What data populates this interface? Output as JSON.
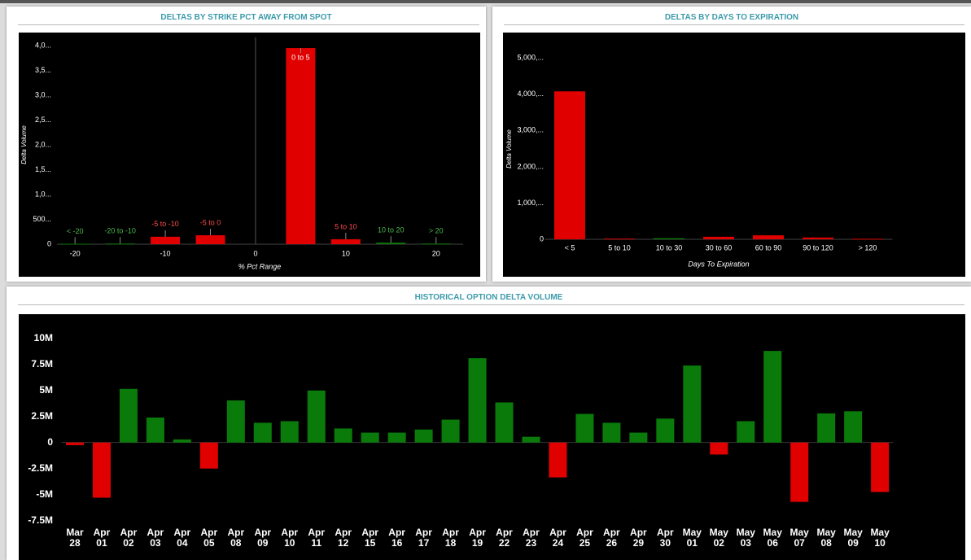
{
  "chart_data": [
    {
      "type": "bar",
      "title": "DELTAS BY STRIKE PCT AWAY FROM SPOT",
      "x_label": "% Pct Range",
      "y_label": "Delta Volume",
      "categories": [
        "< -20",
        "-20 to -10",
        "-5 to -10",
        "-5 to 0",
        "0 to 5",
        "5 to 10",
        "10 to 20",
        "> 20"
      ],
      "x": [
        -20,
        -15,
        -10,
        -5,
        5,
        10,
        15,
        20
      ],
      "values": [
        8,
        12,
        150,
        180,
        3950,
        100,
        30,
        12
      ],
      "colors": [
        "#0a7a0a",
        "#0a7a0a",
        "#e00000",
        "#e00000",
        "#e00000",
        "#e00000",
        "#0a7a0a",
        "#0a7a0a"
      ],
      "xlim": [
        -22,
        23
      ],
      "xticks": [
        -20,
        -10,
        0,
        10,
        20
      ],
      "ylim": [
        0,
        4000
      ],
      "yticks": [
        0,
        {
          "value": 500,
          "label": "500..."
        },
        {
          "value": 1000,
          "label": "1,0..."
        },
        {
          "value": 1500,
          "label": "1,5..."
        },
        {
          "value": 2000,
          "label": "2,0..."
        },
        {
          "value": 2500,
          "label": "2,5..."
        },
        {
          "value": 3000,
          "label": "3,0..."
        },
        {
          "value": 3500,
          "label": "3,5..."
        },
        {
          "value": 4000,
          "label": "4,0..."
        }
      ]
    },
    {
      "type": "bar",
      "title": "DELTAS BY DAYS TO EXPIRATION",
      "x_label": "Days To Expiration",
      "y_label": "Delta Volume",
      "categories": [
        "< 5",
        "5 to 10",
        "10 to 30",
        "30 to 60",
        "60 to 90",
        "90 to 120",
        "> 120"
      ],
      "values": [
        4080,
        20,
        30,
        70,
        110,
        50,
        15
      ],
      "colors": [
        "#e00000",
        "#e00000",
        "#0a7a0a",
        "#e00000",
        "#e00000",
        "#e00000",
        "#e00000"
      ],
      "ylim": [
        0,
        5500
      ],
      "yticks": [
        0,
        {
          "value": 1000,
          "label": "1,000,..."
        },
        {
          "value": 2000,
          "label": "2,000,..."
        },
        {
          "value": 3000,
          "label": "3,000,..."
        },
        {
          "value": 4000,
          "label": "4,000,..."
        },
        {
          "value": 5000,
          "label": "5,000,..."
        }
      ]
    },
    {
      "type": "bar",
      "title": "HISTORICAL OPTION DELTA VOLUME",
      "categories": [
        "Mar 28",
        "Apr 01",
        "Apr 02",
        "Apr 03",
        "Apr 04",
        "Apr 05",
        "Apr 08",
        "Apr 09",
        "Apr 10",
        "Apr 11",
        "Apr 12",
        "Apr 15",
        "Apr 16",
        "Apr 17",
        "Apr 18",
        "Apr 19",
        "Apr 22",
        "Apr 23",
        "Apr 24",
        "Apr 25",
        "Apr 26",
        "Apr 29",
        "Apr 30",
        "May 01",
        "May 02",
        "May 03",
        "May 06",
        "May 07",
        "May 08",
        "May 09",
        "May 10"
      ],
      "values": [
        -250000,
        -5300000,
        5150000,
        2400000,
        300000,
        -2500000,
        4050000,
        1900000,
        2050000,
        5000000,
        1350000,
        950000,
        950000,
        1250000,
        2200000,
        8100000,
        3850000,
        550000,
        -3350000,
        2750000,
        1900000,
        950000,
        2300000,
        7400000,
        -1150000,
        2050000,
        8800000,
        -5700000,
        2800000,
        3000000,
        -4750000
      ],
      "positive_color": "#0a7a0a",
      "negative_color": "#e00000",
      "ylim": [
        -8000000,
        11000000
      ],
      "yticks": [
        {
          "value": -7500000,
          "label": "-7.5M"
        },
        {
          "value": -5000000,
          "label": "-5M"
        },
        {
          "value": -2500000,
          "label": "-2.5M"
        },
        0,
        {
          "value": 2500000,
          "label": "2.5M"
        },
        {
          "value": 5000000,
          "label": "5M"
        },
        {
          "value": 7500000,
          "label": "7.5M"
        },
        {
          "value": 10000000,
          "label": "10M"
        }
      ]
    }
  ]
}
